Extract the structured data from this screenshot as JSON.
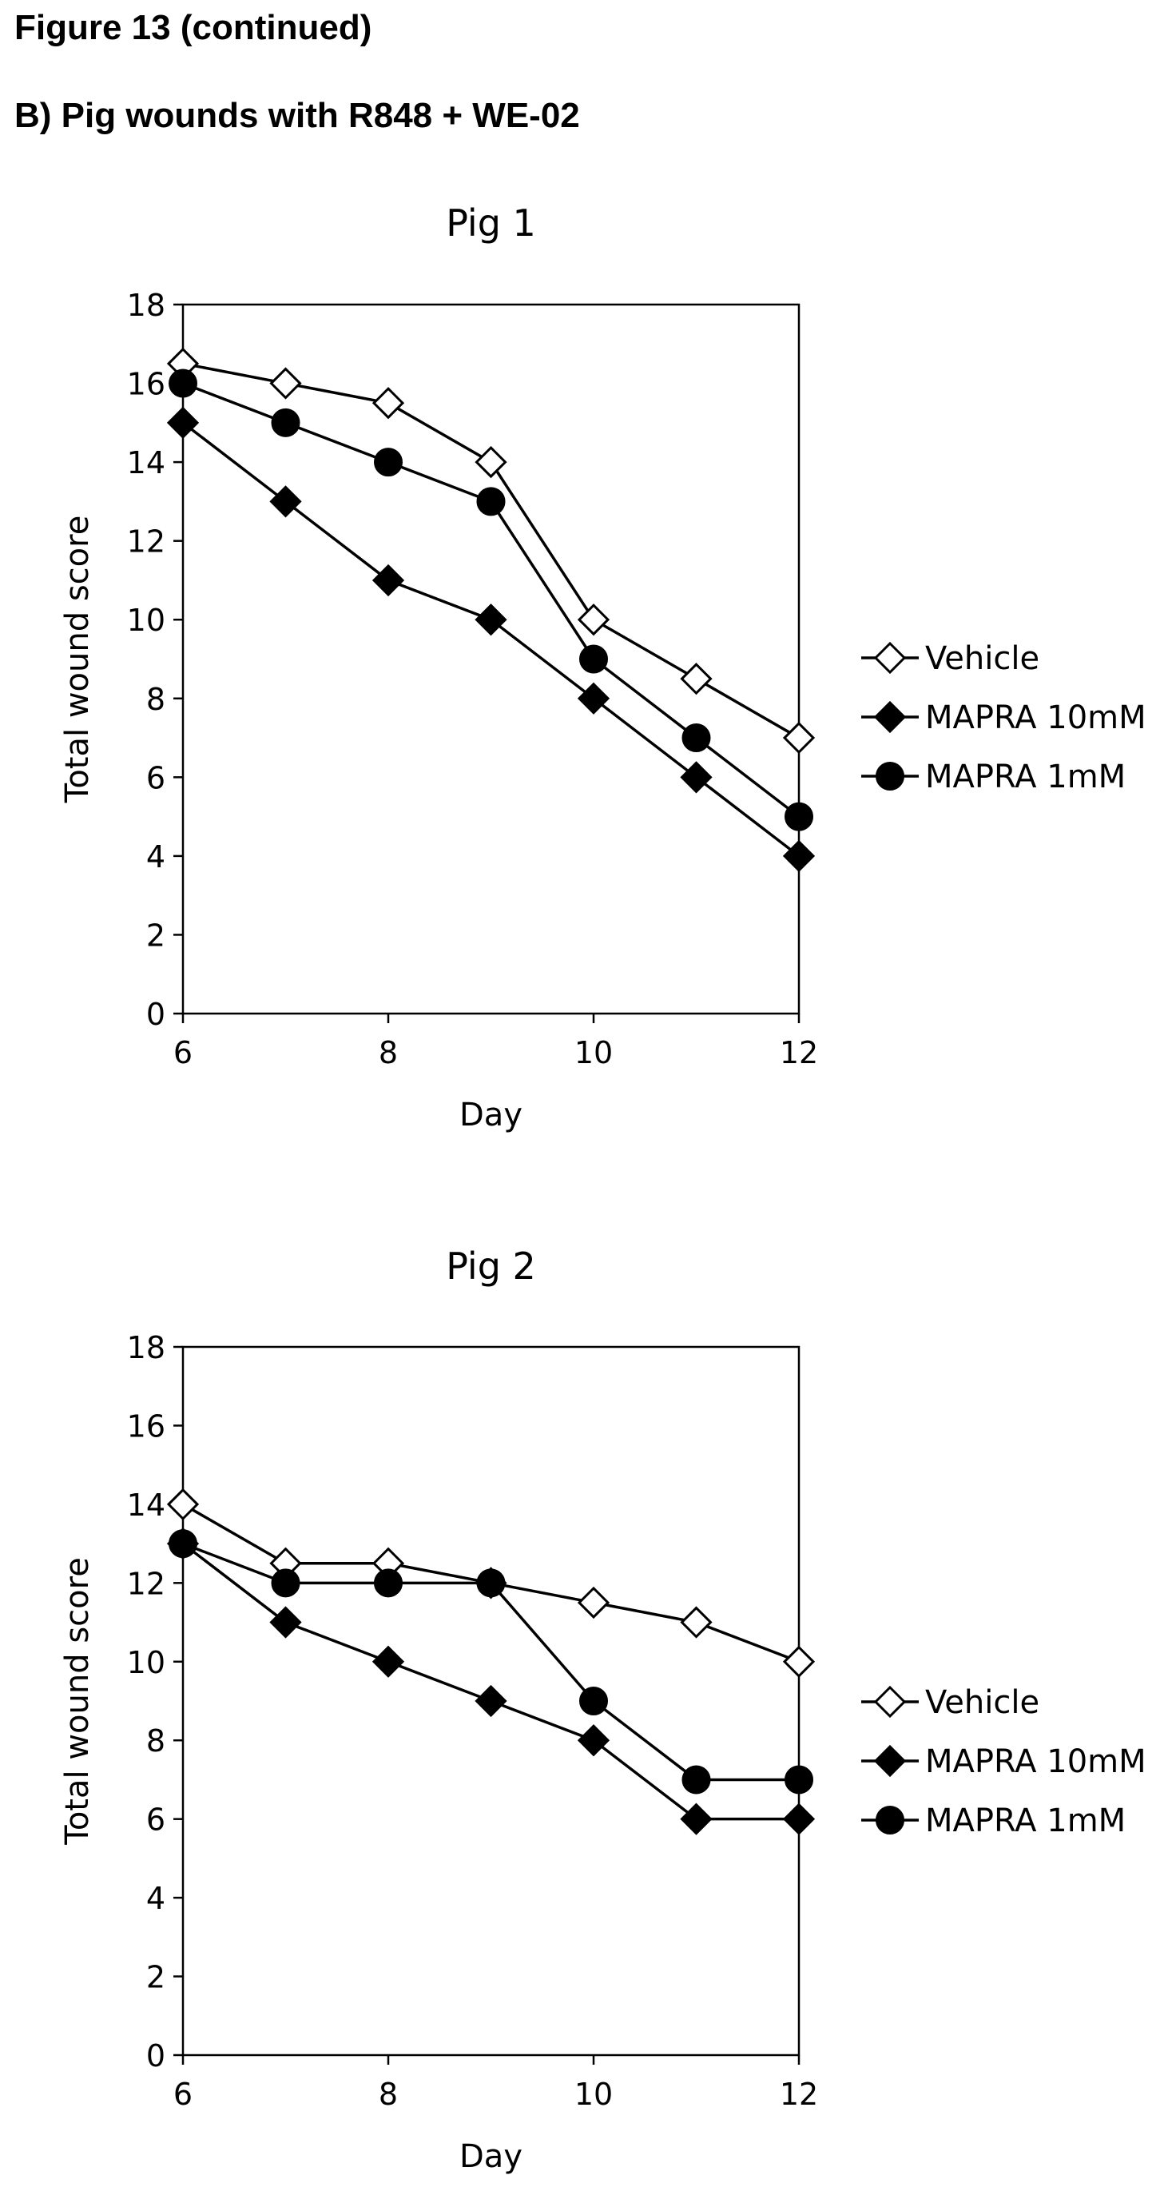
{
  "figure": {
    "title": "Figure 13 (continued)",
    "subtitle": "B) Pig wounds with R848 + WE-02"
  },
  "colors": {
    "ink": "#000000",
    "background": "#ffffff"
  },
  "chart_data": [
    {
      "type": "line",
      "title": "Pig 1",
      "xlabel": "Day",
      "ylabel": "Total wound score",
      "xlim": [
        6,
        12
      ],
      "ylim": [
        0,
        18
      ],
      "xticks": [
        6,
        8,
        10,
        12
      ],
      "yticks": [
        0,
        2,
        4,
        6,
        8,
        10,
        12,
        14,
        16,
        18
      ],
      "grid": false,
      "legend": "right",
      "x": [
        6,
        7,
        8,
        9,
        10,
        11,
        12
      ],
      "series": [
        {
          "name": "Vehicle",
          "marker": "diamond-open",
          "values": [
            16.5,
            16,
            15.5,
            14,
            10,
            8.5,
            7
          ]
        },
        {
          "name": "MAPRA 10mM",
          "marker": "diamond-filled",
          "values": [
            15,
            13,
            11,
            10,
            8,
            6,
            4
          ]
        },
        {
          "name": "MAPRA 1mM",
          "marker": "circle-filled",
          "values": [
            16,
            15,
            14,
            13,
            9,
            7,
            5
          ]
        }
      ]
    },
    {
      "type": "line",
      "title": "Pig 2",
      "xlabel": "Day",
      "ylabel": "Total wound score",
      "xlim": [
        6,
        12
      ],
      "ylim": [
        0,
        18
      ],
      "xticks": [
        6,
        8,
        10,
        12
      ],
      "yticks": [
        0,
        2,
        4,
        6,
        8,
        10,
        12,
        14,
        16,
        18
      ],
      "grid": false,
      "legend": "right",
      "x": [
        6,
        7,
        8,
        9,
        10,
        11,
        12
      ],
      "series": [
        {
          "name": "Vehicle",
          "marker": "diamond-open",
          "values": [
            14,
            12.5,
            12.5,
            12,
            11.5,
            11,
            10
          ]
        },
        {
          "name": "MAPRA 10mM",
          "marker": "diamond-filled",
          "values": [
            13,
            11,
            10,
            9,
            8,
            6,
            6
          ]
        },
        {
          "name": "MAPRA 1mM",
          "marker": "circle-filled",
          "values": [
            13,
            12,
            12,
            12,
            9,
            7,
            7
          ]
        }
      ]
    }
  ]
}
